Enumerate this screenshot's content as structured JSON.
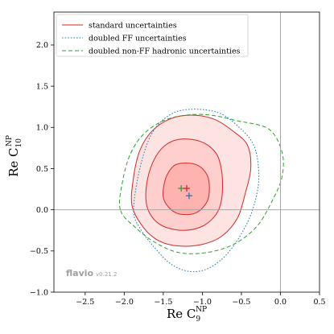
{
  "chart_data": {
    "type": "contour",
    "xlabel": {
      "base": "Re C",
      "sub": "9",
      "sup": "NP"
    },
    "ylabel": {
      "base": "Re C",
      "sub": "10",
      "sup": "NP"
    },
    "xlim": [
      -2.9,
      0.5
    ],
    "ylim": [
      -1.0,
      2.4
    ],
    "xticks": [
      -2.5,
      -2.0,
      -1.5,
      -1.0,
      -0.5,
      0.0,
      0.5
    ],
    "xtick_labels": [
      "−2.5",
      "−2.0",
      "−1.5",
      "−1.0",
      "−0.5",
      "0.0",
      "0.5"
    ],
    "yticks": [
      -1.0,
      -0.5,
      0.0,
      0.5,
      1.0,
      1.5,
      2.0
    ],
    "ytick_labels": [
      "−1.0",
      "−0.5",
      "0.0",
      "0.5",
      "1.0",
      "1.5",
      "2.0"
    ],
    "reference_lines": {
      "x": 0.0,
      "y": 0.0
    },
    "legend": {
      "placement": "top-left",
      "entries": [
        {
          "label": "standard uncertainties",
          "style": "solid",
          "color": "#d62728"
        },
        {
          "label": "doubled FF uncertainties",
          "style": "dotted",
          "color": "#1f77b4"
        },
        {
          "label": "doubled non-FF hadronic uncertainties",
          "style": "dashed",
          "color": "#2ca02c"
        }
      ]
    },
    "series": [
      {
        "style": "solid",
        "color": "#d62728",
        "filled": true,
        "contours": [
          {
            "level": "1sigma",
            "fill": "#ffb3b0",
            "points": [
              [
                -1.5,
                0.15
              ],
              [
                -1.48,
                0.35
              ],
              [
                -1.4,
                0.5
              ],
              [
                -1.3,
                0.56
              ],
              [
                -1.12,
                0.56
              ],
              [
                -1.0,
                0.5
              ],
              [
                -0.92,
                0.37
              ],
              [
                -0.92,
                0.15
              ],
              [
                -1.0,
                0.02
              ],
              [
                -1.12,
                -0.05
              ],
              [
                -1.3,
                -0.05
              ],
              [
                -1.42,
                0.02
              ]
            ]
          },
          {
            "level": "2sigma",
            "fill": "#ffcfcd",
            "points": [
              [
                -1.72,
                0.1
              ],
              [
                -1.7,
                0.38
              ],
              [
                -1.6,
                0.64
              ],
              [
                -1.45,
                0.8
              ],
              [
                -1.25,
                0.86
              ],
              [
                -1.0,
                0.82
              ],
              [
                -0.82,
                0.68
              ],
              [
                -0.75,
                0.45
              ],
              [
                -0.75,
                0.15
              ],
              [
                -0.82,
                -0.05
              ],
              [
                -1.0,
                -0.2
              ],
              [
                -1.25,
                -0.25
              ],
              [
                -1.5,
                -0.2
              ],
              [
                -1.65,
                -0.08
              ]
            ]
          },
          {
            "level": "3sigma",
            "fill": "#fde3e2",
            "points": [
              [
                -1.9,
                0.05
              ],
              [
                -1.88,
                0.4
              ],
              [
                -1.8,
                0.72
              ],
              [
                -1.65,
                0.95
              ],
              [
                -1.42,
                1.1
              ],
              [
                -1.15,
                1.15
              ],
              [
                -0.85,
                1.1
              ],
              [
                -0.6,
                0.95
              ],
              [
                -0.42,
                0.78
              ],
              [
                -0.38,
                0.5
              ],
              [
                -0.45,
                0.2
              ],
              [
                -0.55,
                -0.1
              ],
              [
                -0.75,
                -0.32
              ],
              [
                -1.0,
                -0.42
              ],
              [
                -1.3,
                -0.44
              ],
              [
                -1.55,
                -0.38
              ],
              [
                -1.75,
                -0.22
              ]
            ]
          }
        ]
      },
      {
        "style": "dotted",
        "color": "#1f77b4",
        "filled": false,
        "contours": [
          {
            "level": "3sigma",
            "points": [
              [
                -1.88,
                0.0
              ],
              [
                -1.8,
                0.5
              ],
              [
                -1.65,
                0.92
              ],
              [
                -1.42,
                1.15
              ],
              [
                -1.15,
                1.22
              ],
              [
                -0.8,
                1.18
              ],
              [
                -0.55,
                1.02
              ],
              [
                -0.35,
                0.8
              ],
              [
                -0.28,
                0.5
              ],
              [
                -0.3,
                0.2
              ],
              [
                -0.42,
                -0.15
              ],
              [
                -0.65,
                -0.5
              ],
              [
                -0.9,
                -0.7
              ],
              [
                -1.15,
                -0.75
              ],
              [
                -1.4,
                -0.66
              ],
              [
                -1.62,
                -0.45
              ],
              [
                -1.8,
                -0.22
              ]
            ]
          }
        ]
      },
      {
        "style": "dashed",
        "color": "#2ca02c",
        "filled": false,
        "contours": [
          {
            "level": "3sigma",
            "points": [
              [
                -2.05,
                0.0
              ],
              [
                -2.02,
                0.35
              ],
              [
                -1.92,
                0.68
              ],
              [
                -1.75,
                0.92
              ],
              [
                -1.5,
                1.08
              ],
              [
                -1.2,
                1.15
              ],
              [
                -0.9,
                1.15
              ],
              [
                -0.55,
                1.08
              ],
              [
                -0.15,
                0.98
              ],
              [
                0.02,
                0.7
              ],
              [
                0.02,
                0.4
              ],
              [
                -0.1,
                0.12
              ],
              [
                -0.3,
                -0.2
              ],
              [
                -0.6,
                -0.42
              ],
              [
                -0.95,
                -0.52
              ],
              [
                -1.3,
                -0.52
              ],
              [
                -1.6,
                -0.4
              ],
              [
                -1.85,
                -0.22
              ]
            ]
          }
        ]
      }
    ],
    "best_fit_points": [
      {
        "series": "dashed",
        "color": "#2ca02c",
        "x": -1.27,
        "y": 0.26
      },
      {
        "series": "solid",
        "color": "#d62728",
        "x": -1.2,
        "y": 0.26
      },
      {
        "series": "dotted",
        "color": "#1f77b4",
        "x": -1.17,
        "y": 0.17
      }
    ]
  },
  "branding": {
    "name": "flavio",
    "version": "v0.21.2"
  }
}
